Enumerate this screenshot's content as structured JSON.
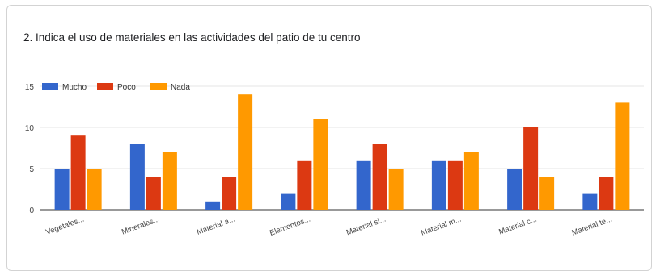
{
  "chart_data": {
    "type": "bar",
    "title": "2. Indica el uso de materiales en las actividades del patio de tu centro",
    "categories": [
      "Vegetales...",
      "Minerales...",
      "Material a...",
      "Elementos...",
      "Material si...",
      "Material m...",
      "Material c...",
      "Material te..."
    ],
    "series": [
      {
        "name": "Mucho",
        "color": "#3366cc",
        "values": [
          5,
          8,
          1,
          2,
          6,
          6,
          5,
          2
        ]
      },
      {
        "name": "Poco",
        "color": "#dc3912",
        "values": [
          9,
          4,
          4,
          6,
          8,
          6,
          10,
          4
        ]
      },
      {
        "name": "Nada",
        "color": "#ff9900",
        "values": [
          5,
          7,
          14,
          11,
          5,
          7,
          4,
          13
        ]
      }
    ],
    "ylim": [
      0,
      15
    ],
    "yticks": [
      "0",
      "5",
      "10",
      "15"
    ],
    "legend_position": "top-left",
    "grid": true
  }
}
